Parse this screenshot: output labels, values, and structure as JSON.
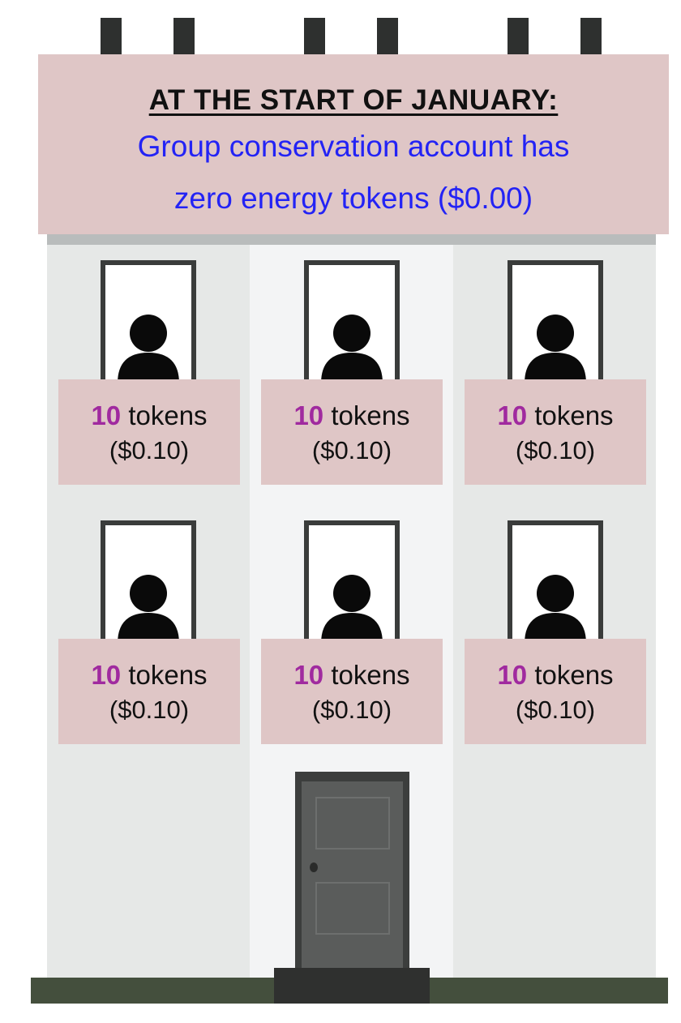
{
  "header": {
    "title": "AT THE START OF JANUARY:",
    "line1": "Group conservation account has",
    "line2": "zero energy tokens ($0.00)"
  },
  "units": [
    {
      "tokens": "10",
      "unit_label": "tokens",
      "amount": "($0.10)"
    },
    {
      "tokens": "10",
      "unit_label": "tokens",
      "amount": "($0.10)"
    },
    {
      "tokens": "10",
      "unit_label": "tokens",
      "amount": "($0.10)"
    },
    {
      "tokens": "10",
      "unit_label": "tokens",
      "amount": "($0.10)"
    },
    {
      "tokens": "10",
      "unit_label": "tokens",
      "amount": "($0.10)"
    },
    {
      "tokens": "10",
      "unit_label": "tokens",
      "amount": "($0.10)"
    }
  ],
  "colors": {
    "roof": "#dfc6c6",
    "headline_text": "#111111",
    "sub_text": "#2323f5",
    "token_number": "#a02a9f",
    "ground": "#444f3d",
    "door": "#5a5c5b"
  },
  "icons": [
    "chimney-icon",
    "person-icon",
    "door-icon"
  ]
}
